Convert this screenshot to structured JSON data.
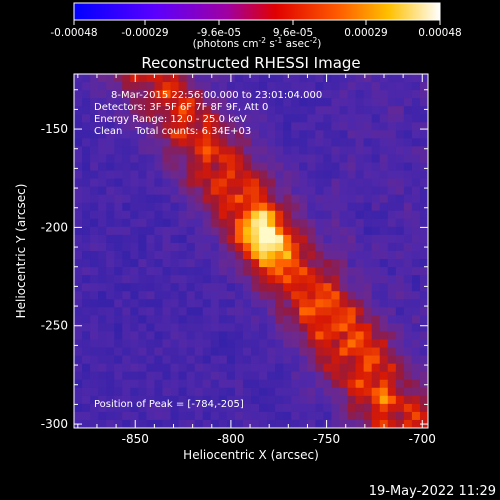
{
  "chart_data": {
    "type": "heatmap",
    "title": "Reconstructed RHESSI Image",
    "colorbar": {
      "ticks": [
        "-0.00048",
        "-0.00029",
        "-9.6e-05",
        "9.6e-05",
        "0.00029",
        "0.00048"
      ],
      "unit_label": "(photons cm",
      "unit_label_sup1": "-2",
      "unit_label_mid": " s",
      "unit_label_sup2": "-1",
      "unit_label_end": " asec",
      "unit_label_sup3": "-2",
      "unit_label_close": ")",
      "range": [
        -0.00048,
        0.00048
      ]
    },
    "annotations": {
      "time": "8-Mar-2015 22:56:00.000 to 23:01:04.000",
      "detectors": "Detectors: 3F 5F 6F 7F 8F 9F, Att 0",
      "energy": "Energy Range: 12.0 - 25.0 keV",
      "clean": "Clean    Total counts: 6.34E+03",
      "peak": "Position of Peak = [-784,-205]"
    },
    "xlabel": "Heliocentric X (arcsec)",
    "ylabel": "Heliocentric Y (arcsec)",
    "xlim": [
      -882,
      -697
    ],
    "ylim": [
      -302,
      -122
    ],
    "xticks": [
      {
        "value": -850,
        "label": "-850"
      },
      {
        "value": -800,
        "label": "-800"
      },
      {
        "value": -750,
        "label": "-750"
      },
      {
        "value": -700,
        "label": "-700"
      }
    ],
    "yticks": [
      {
        "value": -150,
        "label": "-150"
      },
      {
        "value": -200,
        "label": "-200"
      },
      {
        "value": -250,
        "label": "-250"
      },
      {
        "value": -300,
        "label": "-300"
      }
    ],
    "peak": {
      "x": -784,
      "y": -205
    }
  },
  "footer": {
    "timestamp": "19-May-2022 11:29"
  }
}
